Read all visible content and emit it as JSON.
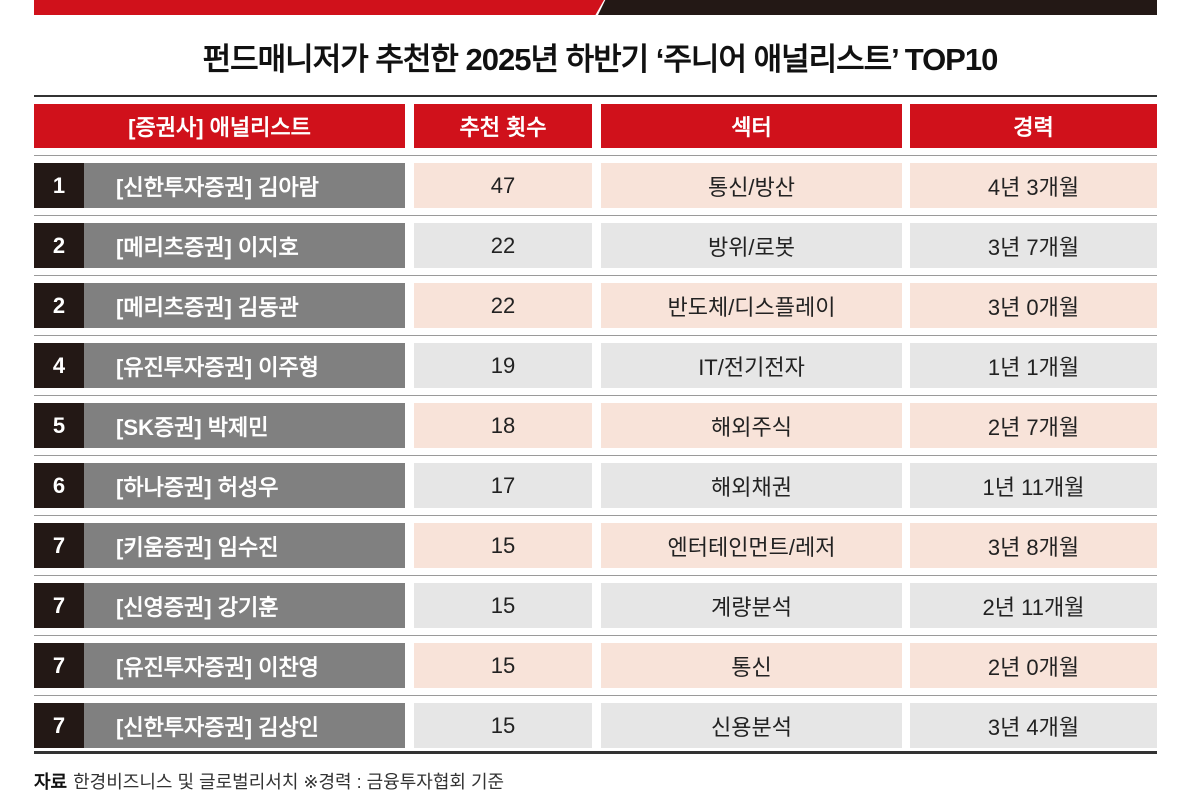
{
  "title": "펀드매니저가 추천한 2025년 하반기 ‘주니어 애널리스트’ TOP10",
  "colors": {
    "accent_red": "#d0111b",
    "dark": "#231815",
    "name_bg": "#808080",
    "row_pink": "#f8e3d9",
    "row_grey": "#e6e6e6"
  },
  "headers": [
    "[증권사] 애널리스트",
    "추천 횟수",
    "섹터",
    "경력"
  ],
  "rows": [
    {
      "rank": "1",
      "analyst": "[신한투자증권] 김아람",
      "count": "47",
      "sector": "통신/방산",
      "career": "4년 3개월"
    },
    {
      "rank": "2",
      "analyst": "[메리츠증권] 이지호",
      "count": "22",
      "sector": "방위/로봇",
      "career": "3년 7개월"
    },
    {
      "rank": "2",
      "analyst": "[메리츠증권] 김동관",
      "count": "22",
      "sector": "반도체/디스플레이",
      "career": "3년 0개월"
    },
    {
      "rank": "4",
      "analyst": "[유진투자증권] 이주형",
      "count": "19",
      "sector": "IT/전기전자",
      "career": "1년 1개월"
    },
    {
      "rank": "5",
      "analyst": "[SK증권] 박제민",
      "count": "18",
      "sector": "해외주식",
      "career": "2년 7개월"
    },
    {
      "rank": "6",
      "analyst": "[하나증권] 허성우",
      "count": "17",
      "sector": "해외채권",
      "career": "1년 11개월"
    },
    {
      "rank": "7",
      "analyst": "[키움증권] 임수진",
      "count": "15",
      "sector": "엔터테인먼트/레저",
      "career": "3년 8개월"
    },
    {
      "rank": "7",
      "analyst": "[신영증권] 강기훈",
      "count": "15",
      "sector": "계량분석",
      "career": "2년 11개월"
    },
    {
      "rank": "7",
      "analyst": "[유진투자증권] 이찬영",
      "count": "15",
      "sector": "통신",
      "career": "2년 0개월"
    },
    {
      "rank": "7",
      "analyst": "[신한투자증권] 김상인",
      "count": "15",
      "sector": "신용분석",
      "career": "3년 4개월"
    }
  ],
  "footer": {
    "label": "자료",
    "text": "한경비즈니스 및 글로벌리서치 ※경력 : 금융투자협회 기준"
  }
}
